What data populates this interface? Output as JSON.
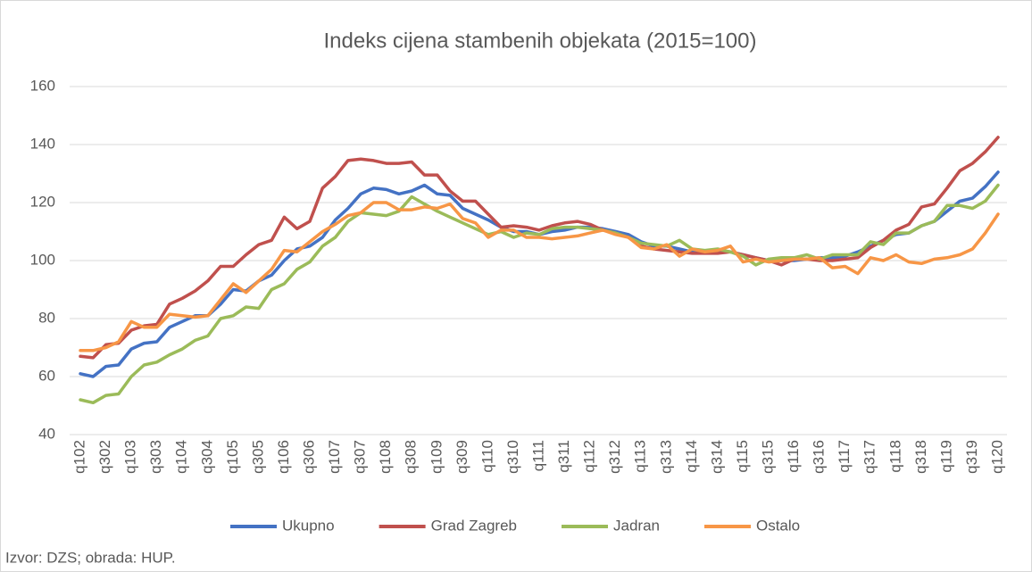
{
  "chart_data": {
    "type": "line",
    "title": "Indeks cijena stambenih objekata (2015=100)",
    "categories": [
      "q102",
      null,
      "q302",
      null,
      "q103",
      null,
      "q303",
      null,
      "q104",
      null,
      "q304",
      null,
      "q105",
      null,
      "q305",
      null,
      "q106",
      null,
      "q306",
      null,
      "q107",
      null,
      "q307",
      null,
      "q108",
      null,
      "q308",
      null,
      "q109",
      null,
      "q309",
      null,
      "q110",
      null,
      "q310",
      null,
      "q111",
      null,
      "q311",
      null,
      "q112",
      null,
      "q312",
      null,
      "q113",
      null,
      "q313",
      null,
      "q114",
      null,
      "q314",
      null,
      "q115",
      null,
      "q315",
      null,
      "q116",
      null,
      "q316",
      null,
      "q117",
      null,
      "q317",
      null,
      "q118",
      null,
      "q318",
      null,
      "q119",
      null,
      "q319",
      null,
      "q120"
    ],
    "series": [
      {
        "name": "Ukupno",
        "color": "#4472c4",
        "values": [
          61,
          60,
          63.5,
          64,
          69.5,
          71.5,
          72,
          77,
          79,
          81,
          81,
          85,
          90,
          89.5,
          93,
          95,
          100,
          104,
          105,
          108,
          114,
          118,
          123,
          125,
          124.5,
          123,
          124,
          126,
          123,
          122.5,
          118,
          116,
          114,
          111.5,
          110,
          110,
          109,
          110,
          110.5,
          111.5,
          111.5,
          111,
          110,
          109,
          106.5,
          105,
          105,
          104,
          103,
          103,
          103.5,
          103,
          102,
          101,
          100,
          100,
          100,
          100.5,
          101,
          101,
          101.5,
          103,
          105,
          107,
          109,
          109.5,
          112,
          113.5,
          117,
          120.5,
          121.5,
          125.5,
          130.5
        ]
      },
      {
        "name": "Grad Zagreb",
        "color": "#c0504d",
        "values": [
          67,
          66.5,
          71,
          71.5,
          76,
          77.5,
          78,
          85,
          87,
          89.5,
          93,
          98,
          98,
          102,
          105.5,
          107,
          115,
          111,
          113.5,
          125,
          129,
          134.5,
          135,
          134.5,
          133.5,
          133.5,
          134,
          129.5,
          129.5,
          124,
          120.5,
          120.5,
          116,
          111.5,
          112,
          111.5,
          110.5,
          112,
          113,
          113.5,
          112.5,
          110.5,
          109.5,
          108,
          105,
          104,
          103.5,
          103,
          102.5,
          102.5,
          102.5,
          103,
          102,
          101,
          100,
          98.5,
          100.5,
          100.5,
          100,
          100,
          100.5,
          101,
          104.5,
          107,
          110.5,
          112.5,
          118.5,
          119.5,
          125,
          131,
          133.5,
          137.5,
          142.5
        ]
      },
      {
        "name": "Jadran",
        "color": "#9bbb59",
        "values": [
          52,
          51,
          53.5,
          54,
          60,
          64,
          65,
          67.5,
          69.5,
          72.5,
          74,
          80,
          81,
          84,
          83.5,
          90,
          92,
          97,
          99.5,
          105,
          108,
          113.5,
          116.5,
          116,
          115.5,
          117,
          122,
          119.5,
          117,
          115,
          113,
          111,
          109,
          110,
          108,
          109.5,
          109,
          111,
          111.5,
          111.5,
          111,
          110.5,
          109.5,
          108,
          106,
          105.5,
          105,
          107,
          104,
          103.5,
          104,
          103,
          101.5,
          98.5,
          100.5,
          101,
          101,
          102,
          100.5,
          102,
          102,
          102,
          106.5,
          105.5,
          109.5,
          109.5,
          112,
          113.5,
          119,
          119,
          118,
          120.5,
          126
        ]
      },
      {
        "name": "Ostalo",
        "color": "#f79646",
        "values": [
          69,
          69,
          70,
          72,
          79,
          77,
          77,
          81.5,
          81,
          80.5,
          81,
          86.5,
          92,
          89,
          93,
          97,
          103.5,
          103,
          106.5,
          110,
          112.5,
          115.5,
          116.5,
          120,
          120,
          117.5,
          117.5,
          118.5,
          118,
          119.5,
          114.5,
          113,
          108,
          110.5,
          110.5,
          108,
          108,
          107.5,
          108,
          108.5,
          109.5,
          110.5,
          109,
          108,
          104.5,
          104,
          105.5,
          101.5,
          104,
          103,
          103.5,
          105,
          99.5,
          100.5,
          99.5,
          100,
          100.5,
          100.5,
          101,
          97.5,
          98,
          95.5,
          101,
          100,
          102,
          99.5,
          99,
          100.5,
          101,
          102,
          104,
          109.5,
          116
        ]
      }
    ],
    "ylim": [
      40,
      160
    ],
    "yticks": [
      40,
      60,
      80,
      100,
      120,
      140,
      160
    ],
    "grid": true,
    "legend": "bottom",
    "source": "Izvor: DZS; obrada: HUP."
  }
}
